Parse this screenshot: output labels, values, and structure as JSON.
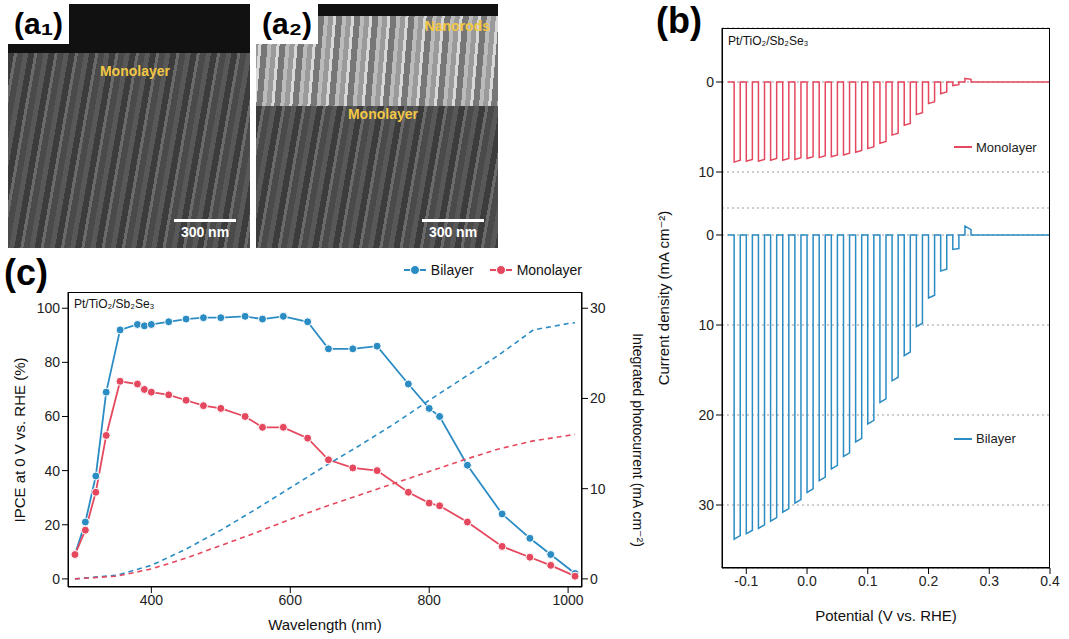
{
  "images": [
    {
      "label": "(a₁)",
      "labels": [
        "Monolayer"
      ],
      "scale_bar": "300 nm"
    },
    {
      "label": "(a₂)",
      "labels": [
        "Nanorods",
        "Monolayer"
      ],
      "scale_bar": "300 nm"
    }
  ],
  "chart_data": [
    {
      "type": "line",
      "panel": "(b)",
      "title": "Pt/TiO₂/Sb₂Se₃",
      "xlabel": "Potential (V vs. RHE)",
      "ylabel": "Current density (mA cm⁻²)",
      "xlim": [
        -0.14,
        0.4
      ],
      "xticks": [
        -0.1,
        {
          "value": 0,
          "label": "0.0"
        },
        0.1,
        0.2,
        0.3,
        0.4
      ],
      "grid": true,
      "legend": "right",
      "x": [
        -0.13,
        -0.12,
        -0.12,
        -0.11,
        -0.11,
        -0.1,
        -0.1,
        -0.09,
        -0.09,
        -0.08,
        -0.08,
        -0.07,
        -0.07,
        -0.06,
        -0.06,
        -0.05,
        -0.05,
        -0.04,
        -0.04,
        -0.03,
        -0.03,
        -0.02,
        -0.02,
        -0.01,
        -0.01,
        0,
        0,
        0.01,
        0.01,
        0.02,
        0.02,
        0.03,
        0.03,
        0.04,
        0.04,
        0.05,
        0.05,
        0.06,
        0.06,
        0.07,
        0.07,
        0.08,
        0.08,
        0.09,
        0.09,
        0.1,
        0.1,
        0.11,
        0.11,
        0.12,
        0.12,
        0.13,
        0.13,
        0.14,
        0.14,
        0.15,
        0.15,
        0.16,
        0.16,
        0.17,
        0.17,
        0.18,
        0.18,
        0.19,
        0.19,
        0.2,
        0.2,
        0.21,
        0.21,
        0.22,
        0.22,
        0.23,
        0.23,
        0.24,
        0.24,
        0.25,
        0.25,
        0.26,
        0.26,
        0.27,
        0.27,
        0.4
      ],
      "series": [
        {
          "name": "Monolayer",
          "color": "#e5485e",
          "line_style": "solid",
          "ylim": [
            14,
            -6
          ],
          "yticks": [
            0,
            10
          ],
          "values": [
            0,
            0,
            8.9,
            8.7,
            0,
            0,
            8.8,
            8.6,
            0,
            0,
            8.8,
            8.6,
            0,
            0,
            8.7,
            8.5,
            0,
            0,
            8.7,
            8.5,
            0,
            0,
            8.6,
            8.4,
            0,
            0,
            8.5,
            8.3,
            0,
            0,
            8.4,
            8.2,
            0,
            0,
            8.3,
            8.1,
            0,
            0,
            8.1,
            7.9,
            0,
            0,
            7.8,
            7.6,
            0,
            0,
            7.4,
            7.2,
            0,
            0,
            6.8,
            6.6,
            0,
            0,
            5.9,
            5.7,
            0,
            0,
            4.8,
            4.6,
            0,
            0,
            3.6,
            3.4,
            0,
            0,
            2.4,
            2.2,
            0,
            0,
            1.3,
            1.1,
            0,
            0,
            0.4,
            0.3,
            0,
            0,
            -0.4,
            -0.3,
            0,
            0
          ]
        },
        {
          "name": "Bilayer",
          "color": "#2b8cc4",
          "line_style": "solid",
          "ylim": [
            37,
            -3
          ],
          "yticks": [
            0,
            10,
            20,
            30
          ],
          "values": [
            0,
            0,
            33.8,
            33.4,
            0,
            0,
            33.2,
            32.8,
            0,
            0,
            32.6,
            32.2,
            0,
            0,
            31.8,
            31.4,
            0,
            0,
            30.8,
            30.4,
            0,
            0,
            29.8,
            29.4,
            0,
            0,
            28.6,
            28.2,
            0,
            0,
            27.3,
            26.9,
            0,
            0,
            26,
            25.6,
            0,
            0,
            24.6,
            24.2,
            0,
            0,
            23,
            22.6,
            0,
            0,
            21,
            20.6,
            0,
            0,
            18.6,
            18.2,
            0,
            0,
            16.2,
            15.8,
            0,
            0,
            13.4,
            13,
            0,
            0,
            10.2,
            9.8,
            0,
            0,
            7,
            6.7,
            0,
            0,
            4,
            3.8,
            0,
            0,
            1.6,
            1.5,
            0,
            0,
            -1,
            -0.6,
            0,
            0
          ]
        }
      ]
    },
    {
      "type": "line",
      "panel": "(c)",
      "title": "Pt/TiO₂/Sb₂Se₃",
      "xlabel": "Wavelength (nm)",
      "ylabel": "IPCE at 0 V vs. RHE (%)",
      "y2label": "Integrated photocurrent (mA cm⁻²)",
      "xlim": [
        280,
        1020
      ],
      "xticks": [
        400,
        600,
        800,
        1000
      ],
      "ylim": [
        -3,
        106
      ],
      "yticks": [
        0,
        20,
        40,
        60,
        80,
        100
      ],
      "y2lim": [
        -0.9,
        31.8
      ],
      "y2ticks": [
        0,
        10,
        20,
        30
      ],
      "legend": "top right",
      "grid": false,
      "series": [
        {
          "name": "Bilayer",
          "color": "#2b8cc4",
          "marker": "circle",
          "line_style": "solid",
          "x": [
            290,
            305,
            320,
            335,
            355,
            380,
            390,
            400,
            425,
            450,
            475,
            500,
            535,
            560,
            590,
            625,
            655,
            690,
            725,
            770,
            800,
            815,
            855,
            905,
            945,
            975,
            1010
          ],
          "values": [
            9,
            21,
            38,
            69,
            92,
            94,
            93.5,
            94,
            95,
            96,
            96.5,
            96.5,
            97,
            96,
            97,
            95,
            85,
            85,
            86,
            72,
            63,
            60,
            42,
            24,
            15,
            9,
            2
          ]
        },
        {
          "name": "Monolayer",
          "color": "#e5485e",
          "marker": "circle",
          "line_style": "solid",
          "x": [
            290,
            305,
            320,
            335,
            355,
            380,
            390,
            400,
            425,
            450,
            475,
            500,
            535,
            560,
            590,
            625,
            655,
            690,
            725,
            770,
            800,
            815,
            855,
            905,
            945,
            975,
            1010
          ],
          "values": [
            9,
            18,
            32,
            53,
            73,
            72,
            70,
            69,
            68,
            66,
            64,
            63,
            60,
            56,
            56,
            52,
            44,
            41,
            40,
            32,
            28,
            27,
            21,
            12,
            8,
            5,
            1
          ]
        },
        {
          "axis": "y2",
          "color": "#2b8cc4",
          "marker": "none",
          "line_style": "dashed",
          "x": [
            290,
            350,
            400,
            450,
            500,
            550,
            600,
            650,
            700,
            750,
            800,
            850,
            900,
            950,
            1000,
            1010
          ],
          "values": [
            0,
            0.4,
            1.5,
            3.3,
            5.4,
            7.7,
            10.1,
            12.5,
            14.8,
            17.2,
            19.8,
            22.3,
            24.8,
            27.6,
            28.3,
            28.4
          ]
        },
        {
          "axis": "y2",
          "color": "#e5485e",
          "marker": "none",
          "line_style": "dashed",
          "x": [
            290,
            350,
            400,
            450,
            500,
            550,
            600,
            650,
            700,
            750,
            800,
            850,
            900,
            950,
            1000,
            1010
          ],
          "values": [
            0,
            0.3,
            1.1,
            2.3,
            3.7,
            5.1,
            6.6,
            8,
            9.3,
            10.6,
            11.9,
            13.2,
            14.4,
            15.3,
            15.9,
            16
          ]
        }
      ]
    }
  ]
}
